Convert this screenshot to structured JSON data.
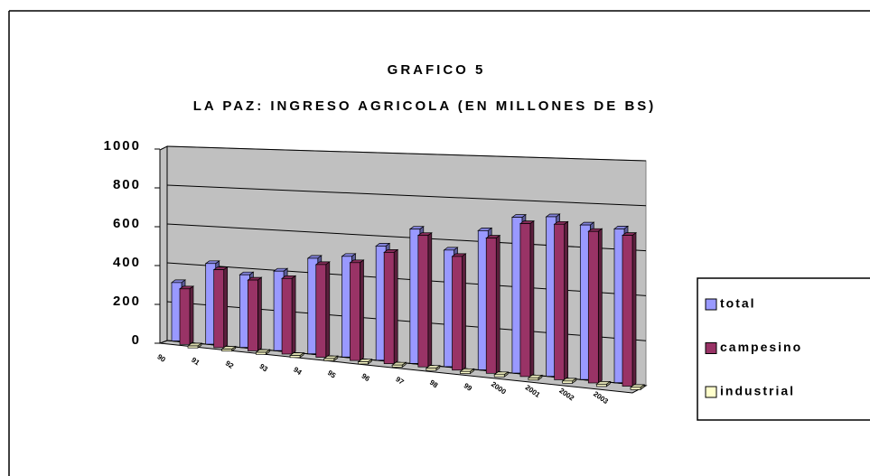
{
  "chart_data": {
    "type": "bar3d",
    "title": "GRAFICO 5",
    "subtitle": "LA PAZ: INGRESO AGRICOLA (EN MILLONES  DE BS)",
    "categories": [
      "90",
      "91",
      "92",
      "93",
      "94",
      "95",
      "96",
      "97",
      "98",
      "99",
      "2000",
      "2001",
      "2002",
      "2003"
    ],
    "series": [
      {
        "name": "total",
        "color": "#9999ff",
        "values": [
          300,
          410,
          365,
          395,
          470,
          490,
          550,
          640,
          550,
          650,
          720,
          730,
          700,
          690
        ]
      },
      {
        "name": "campesino",
        "color": "#993366",
        "values": [
          285,
          395,
          355,
          375,
          455,
          475,
          535,
          625,
          535,
          630,
          705,
          710,
          685,
          675
        ]
      },
      {
        "name": "industrial",
        "color": "#ffffcc",
        "values": [
          10,
          10,
          10,
          10,
          10,
          10,
          10,
          10,
          10,
          10,
          10,
          10,
          10,
          10
        ]
      }
    ],
    "ylim": [
      0,
      1000
    ],
    "yticks": [
      0,
      200,
      400,
      600,
      800,
      1000
    ],
    "grid": true,
    "legend": "right"
  }
}
